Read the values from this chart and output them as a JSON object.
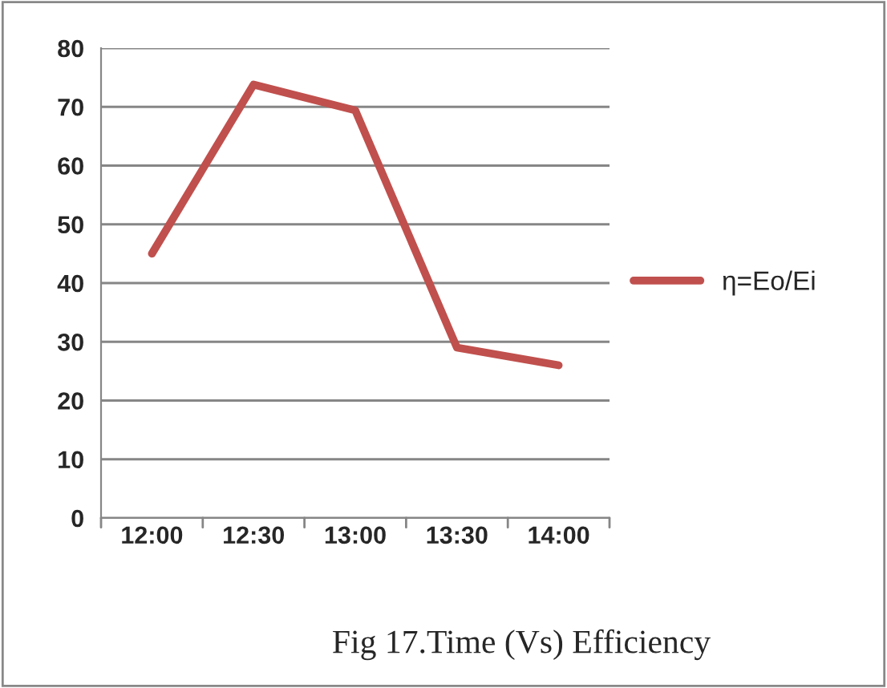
{
  "chart_data": {
    "type": "line",
    "categories": [
      "12:00",
      "12:30",
      "13:00",
      "13:30",
      "14:00"
    ],
    "series": [
      {
        "name": "η=Eo/Ei",
        "color": "#c0504d",
        "values": [
          45,
          73.8,
          69.4,
          29,
          26
        ]
      }
    ],
    "ylim": [
      0,
      80
    ],
    "yticks": [
      0,
      10,
      20,
      30,
      40,
      50,
      60,
      70,
      80
    ],
    "grid": "y",
    "legend": "right",
    "marker": "none",
    "line_style": "solid",
    "annotations": [
      "Fig 17.Time (Vs) Efficiency"
    ]
  }
}
